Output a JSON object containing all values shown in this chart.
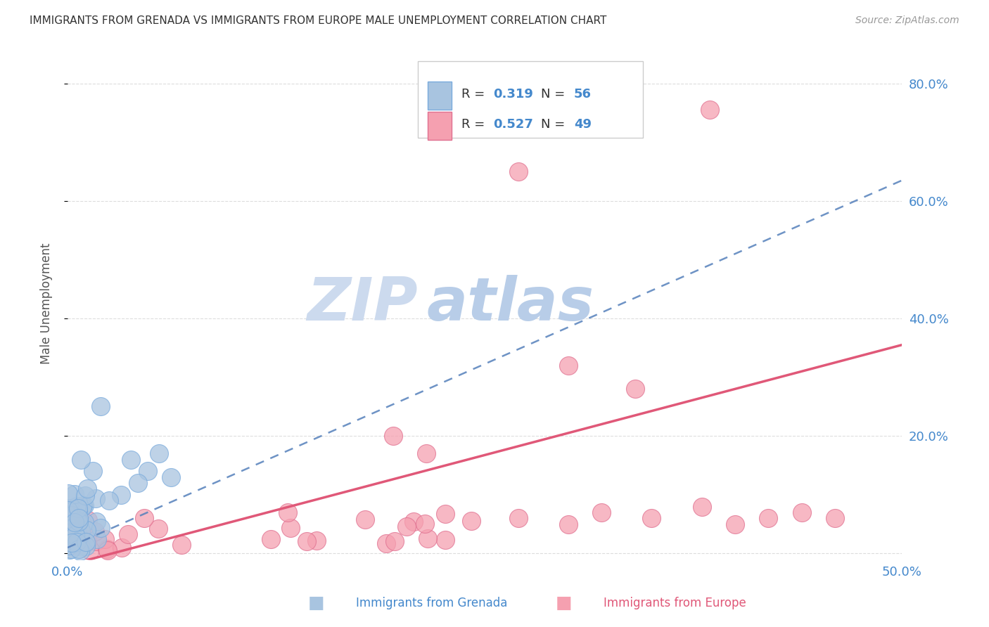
{
  "title": "IMMIGRANTS FROM GRENADA VS IMMIGRANTS FROM EUROPE MALE UNEMPLOYMENT CORRELATION CHART",
  "source": "Source: ZipAtlas.com",
  "xlabel_grenada": "Immigrants from Grenada",
  "xlabel_europe": "Immigrants from Europe",
  "ylabel": "Male Unemployment",
  "xlim": [
    0.0,
    0.5
  ],
  "ylim": [
    -0.01,
    0.86
  ],
  "xtick_positions": [
    0.0,
    0.1,
    0.2,
    0.3,
    0.4,
    0.5
  ],
  "xtick_labels": [
    "0.0%",
    "",
    "",
    "",
    "",
    "50.0%"
  ],
  "ytick_positions": [
    0.0,
    0.2,
    0.4,
    0.6,
    0.8
  ],
  "ytick_labels_right": [
    "",
    "20.0%",
    "40.0%",
    "60.0%",
    "80.0%"
  ],
  "R_grenada": 0.319,
  "N_grenada": 56,
  "R_europe": 0.527,
  "N_europe": 49,
  "grenada_color": "#a8c4e0",
  "grenada_edge_color": "#7aabdd",
  "grenada_line_color": "#5580bb",
  "europe_color": "#f5a0b0",
  "europe_edge_color": "#e07090",
  "europe_line_color": "#e05878",
  "background_color": "#ffffff",
  "grid_color": "#dddddd",
  "title_color": "#333333",
  "right_tick_color": "#4488cc",
  "watermark_zip_color": "#d0dff0",
  "watermark_atlas_color": "#b8cce8",
  "legend_box_color": "#cccccc",
  "bottom_label_color_blue": "#4488cc",
  "bottom_label_color_pink": "#e05878"
}
